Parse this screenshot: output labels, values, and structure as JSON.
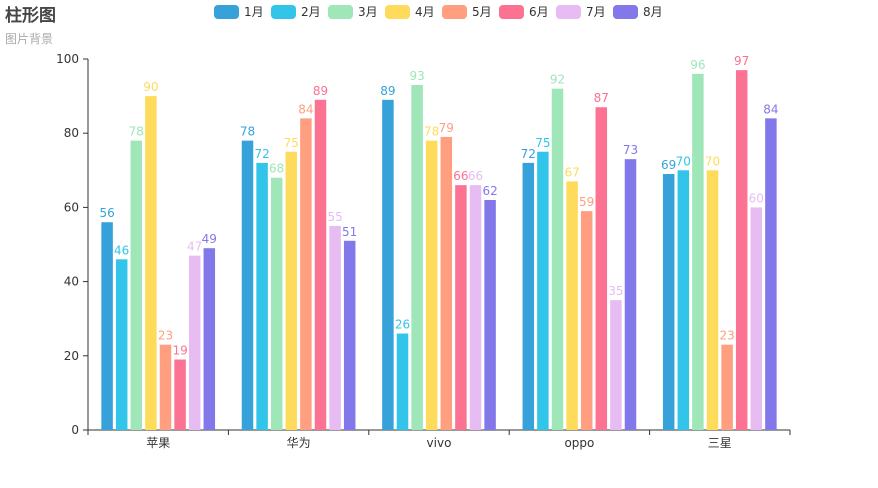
{
  "chart_data": {
    "type": "bar",
    "title": "柱形图",
    "subtitle": "图片背景",
    "categories": [
      "苹果",
      "华为",
      "vivo",
      "oppo",
      "三星"
    ],
    "series": [
      {
        "name": "1月",
        "color": "#37a2da",
        "values": [
          56,
          78,
          89,
          72,
          69
        ]
      },
      {
        "name": "2月",
        "color": "#32c5e9",
        "values": [
          46,
          72,
          26,
          75,
          70
        ]
      },
      {
        "name": "3月",
        "color": "#9fe6b8",
        "values": [
          78,
          68,
          93,
          92,
          96
        ]
      },
      {
        "name": "4月",
        "color": "#ffdb5c",
        "values": [
          90,
          75,
          78,
          67,
          70
        ]
      },
      {
        "name": "5月",
        "color": "#ff9f7f",
        "values": [
          23,
          84,
          79,
          59,
          23
        ]
      },
      {
        "name": "6月",
        "color": "#fb7293",
        "values": [
          19,
          89,
          66,
          87,
          97
        ]
      },
      {
        "name": "7月",
        "color": "#e7bcf3",
        "values": [
          47,
          55,
          66,
          35,
          60
        ]
      },
      {
        "name": "8月",
        "color": "#8378ea",
        "values": [
          49,
          51,
          62,
          73,
          84
        ]
      }
    ],
    "ylim": [
      0,
      100
    ],
    "yticks": [
      0,
      20,
      40,
      60,
      80,
      100
    ],
    "xlabel": "",
    "ylabel": "",
    "legend": "top-center",
    "grid": false
  }
}
